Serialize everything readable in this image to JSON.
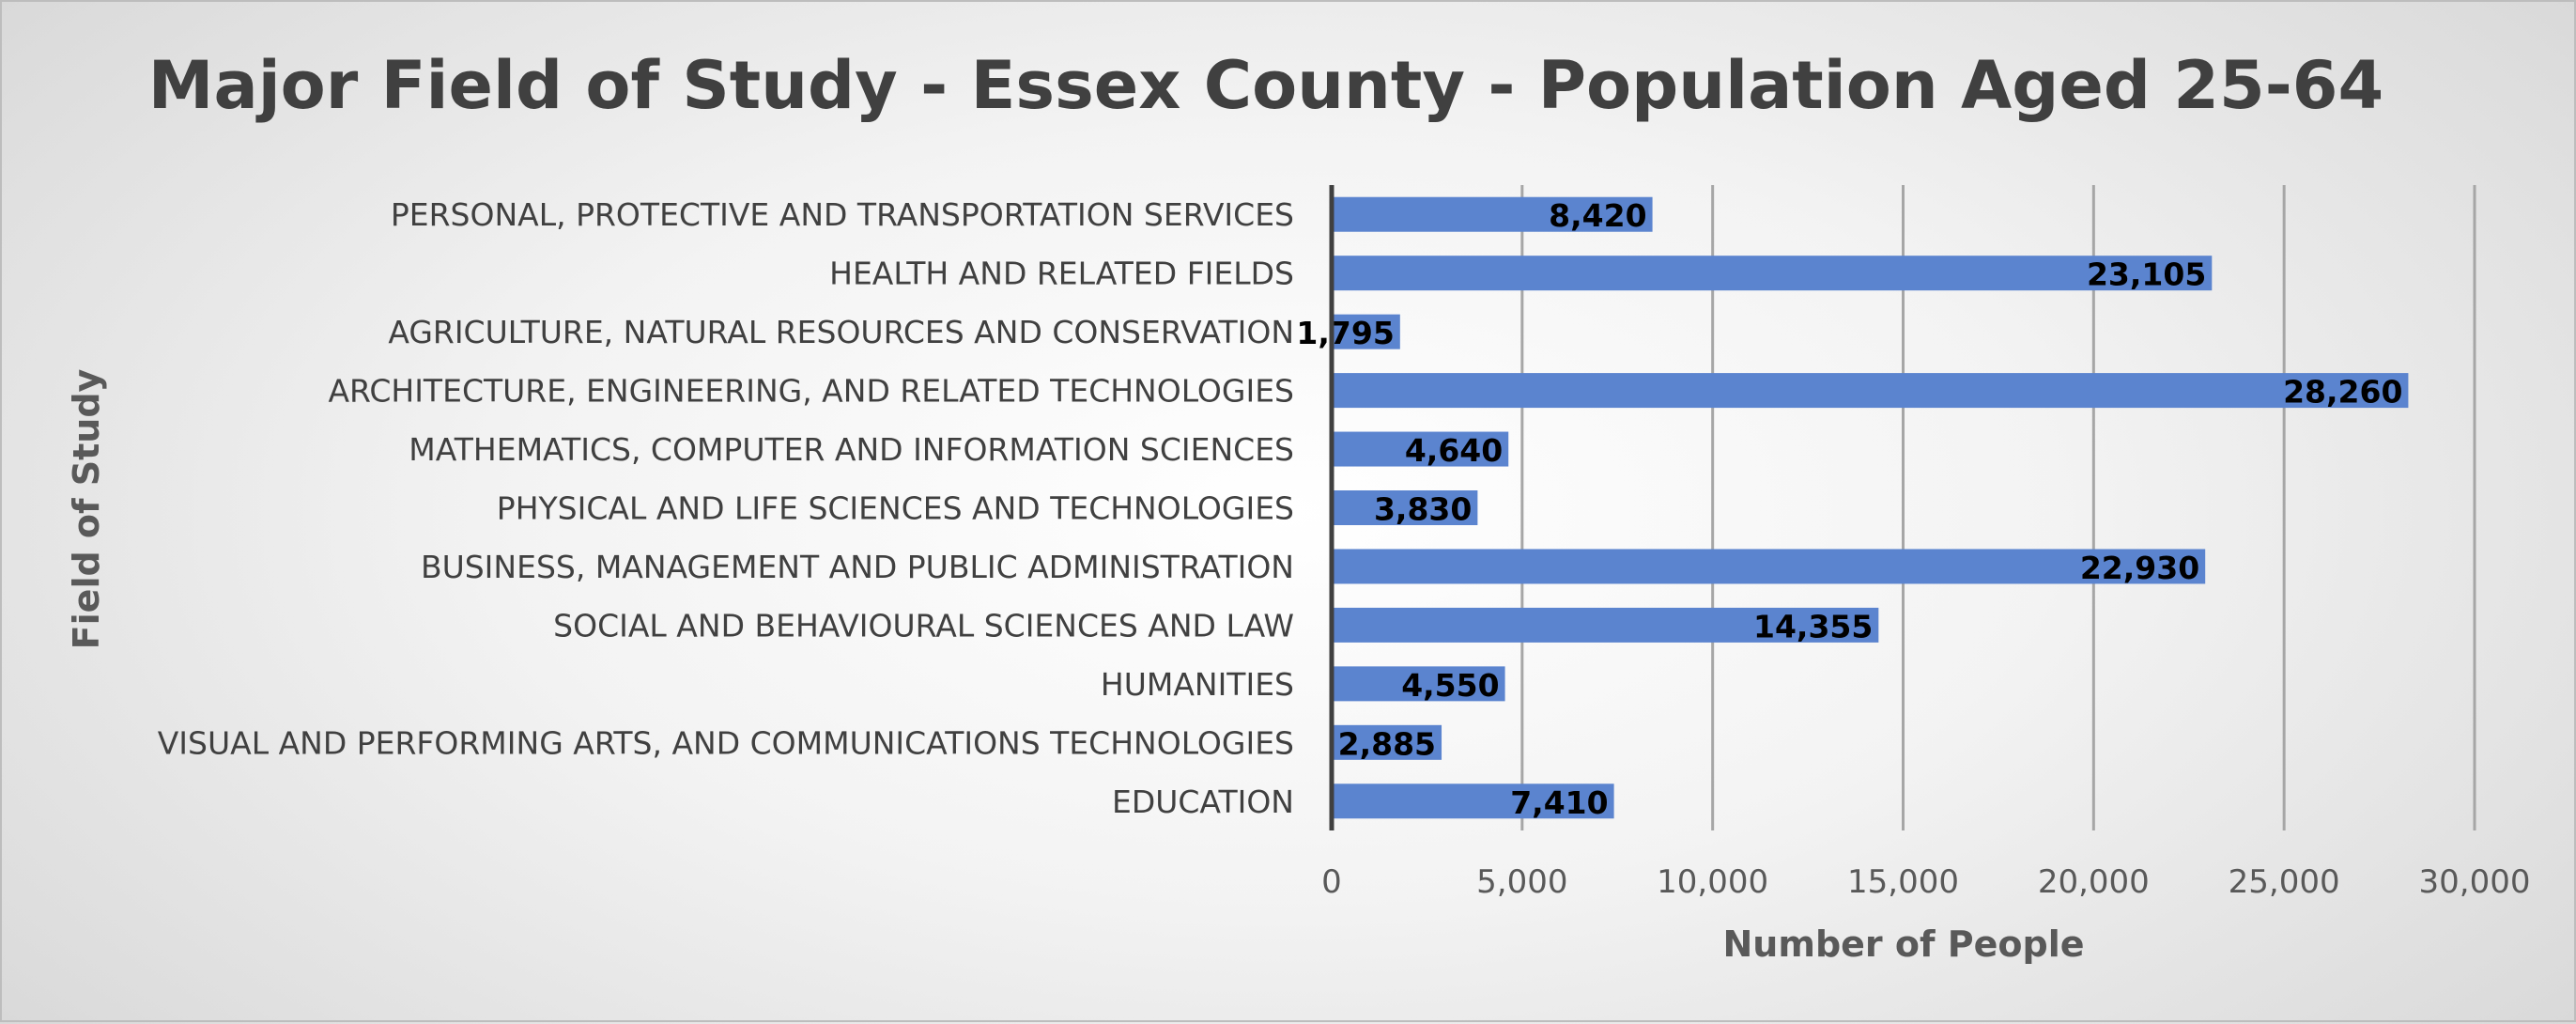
{
  "chart_data": {
    "type": "bar",
    "orientation": "horizontal",
    "title": "Major Field of Study - Essex County - Population Aged 25-64",
    "xlabel": "Number of People",
    "ylabel": "Field of Study",
    "categories": [
      "PERSONAL, PROTECTIVE AND TRANSPORTATION SERVICES",
      "HEALTH AND RELATED FIELDS",
      "AGRICULTURE, NATURAL RESOURCES AND CONSERVATION",
      "ARCHITECTURE, ENGINEERING, AND RELATED TECHNOLOGIES",
      "MATHEMATICS, COMPUTER AND INFORMATION SCIENCES",
      "PHYSICAL AND LIFE SCIENCES AND TECHNOLOGIES",
      "BUSINESS, MANAGEMENT AND PUBLIC ADMINISTRATION",
      "SOCIAL AND BEHAVIOURAL SCIENCES AND LAW",
      "HUMANITIES",
      "VISUAL AND PERFORMING ARTS, AND COMMUNICATIONS TECHNOLOGIES",
      "EDUCATION"
    ],
    "values": [
      8420,
      23105,
      1795,
      28260,
      4640,
      3830,
      22930,
      14355,
      4550,
      2885,
      7410
    ],
    "data_labels": [
      "8,420",
      "23,105",
      "1,795",
      "28,260",
      "4,640",
      "3,830",
      "22,930",
      "14,355",
      "4,550",
      "2,885",
      "7,410"
    ],
    "xlim": [
      0,
      30000
    ],
    "xticks": [
      0,
      5000,
      10000,
      15000,
      20000,
      25000,
      30000
    ],
    "xtick_labels": [
      "0",
      "5,000",
      "10,000",
      "15,000",
      "20,000",
      "25,000",
      "30,000"
    ],
    "grid": true,
    "legend": "none",
    "bar_color": "#5b84cf"
  }
}
